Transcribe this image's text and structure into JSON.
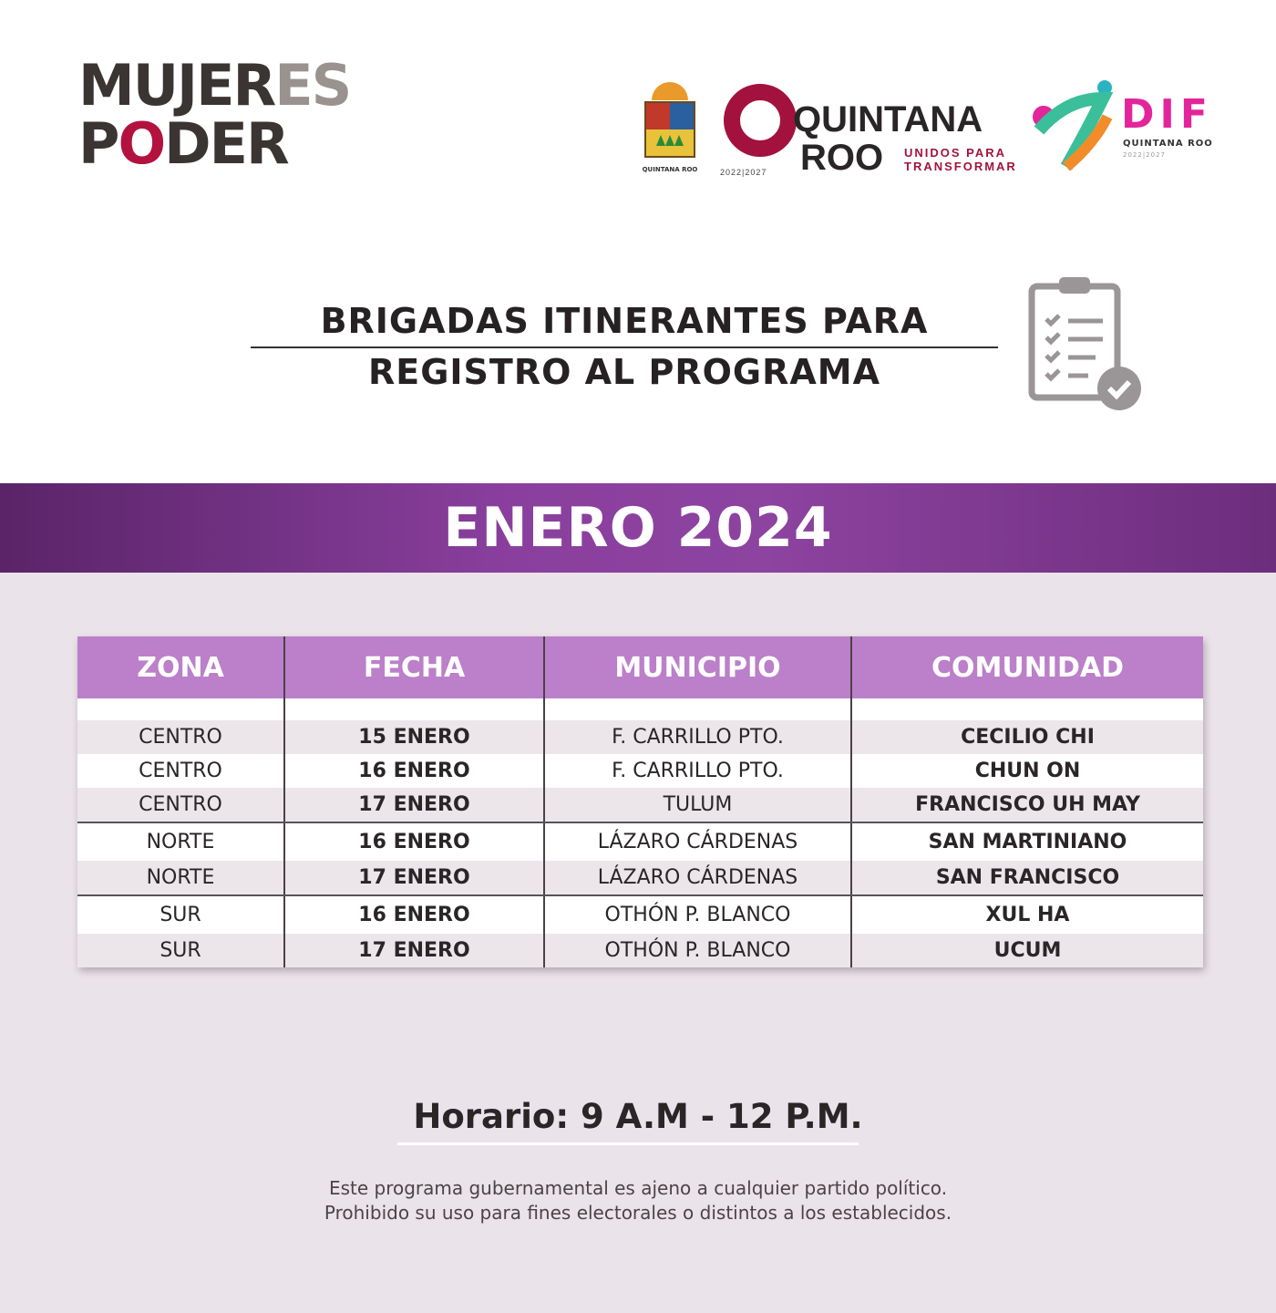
{
  "logos": {
    "mujeres_poder": [
      "MUJER",
      "ES",
      "P",
      "O",
      "DER"
    ],
    "quintana_roo_coat": "QUINTANA ROO",
    "gobierno": {
      "line1": "QUINTANA",
      "line2": "ROO",
      "tagline1": "UNIDOS PARA",
      "tagline2": "TRANSFORMAR",
      "years": "2022|2027"
    },
    "dif": {
      "name": "DIF",
      "sub": "QUINTANA ROO",
      "years": "2022|2027"
    }
  },
  "title": {
    "line1": "BRIGADAS ITINERANTES PARA",
    "line2": "REGISTRO AL PROGRAMA",
    "icon": "clipboard-check-icon"
  },
  "month": "ENERO 2024",
  "table": {
    "headers": [
      "ZONA",
      "FECHA",
      "MUNICIPIO",
      "COMUNIDAD"
    ],
    "rows": [
      [
        "CENTRO",
        "15 ENERO",
        "F. CARRILLO PTO.",
        "CECILIO CHI"
      ],
      [
        "CENTRO",
        "16 ENERO",
        "F. CARRILLO PTO.",
        "CHUN ON"
      ],
      [
        "CENTRO",
        "17 ENERO",
        "TULUM",
        "FRANCISCO UH MAY"
      ],
      [
        "NORTE",
        "16 ENERO",
        "LÁZARO CÁRDENAS",
        "SAN MARTINIANO"
      ],
      [
        "NORTE",
        "17 ENERO",
        "LÁZARO CÁRDENAS",
        "SAN FRANCISCO"
      ],
      [
        "SUR",
        "16 ENERO",
        "OTHÓN P. BLANCO",
        "XUL HA"
      ],
      [
        "SUR",
        "17 ENERO",
        "OTHÓN P. BLANCO",
        "UCUM"
      ]
    ]
  },
  "horario": "Horario: 9 A.M - 12 P.M.",
  "disclaimer": {
    "line1": "Este programa gubernamental es ajeno a cualquier partido político.",
    "line2": "Prohibido su uso para fines electorales o distintos a los establecidos."
  },
  "colors": {
    "band": "#8a3f9e",
    "header": "#bb80c9",
    "accent_red": "#b3123f",
    "dif_pink": "#e3259b"
  }
}
